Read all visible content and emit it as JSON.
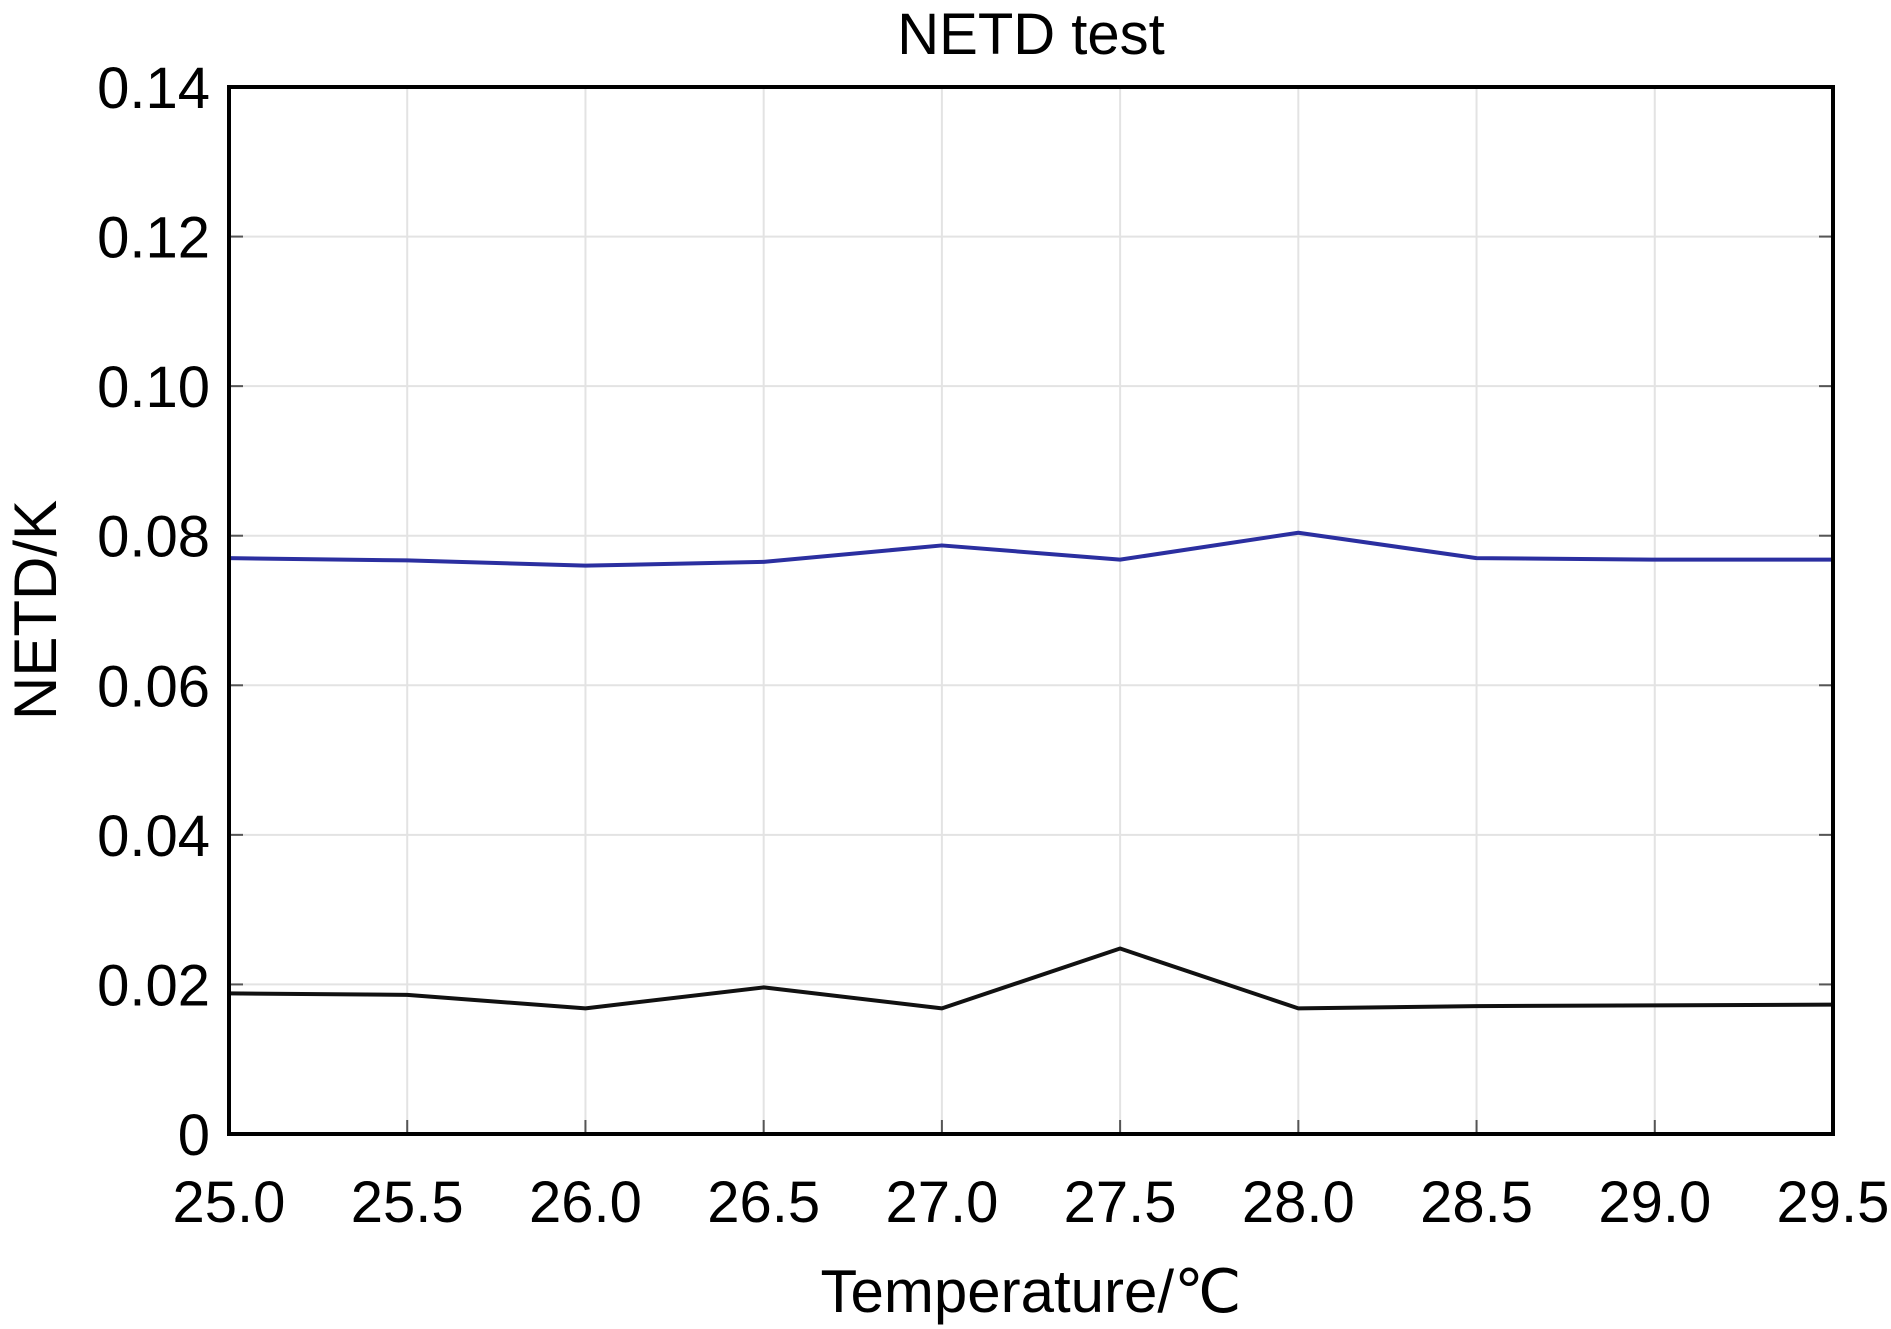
{
  "chart_data": {
    "type": "line",
    "title": "NETD test",
    "xlabel": "Temperature/℃",
    "ylabel": "NETD/K",
    "xlim": [
      25.0,
      29.5
    ],
    "ylim": [
      0,
      0.14
    ],
    "x_ticks": [
      25.0,
      25.5,
      26.0,
      26.5,
      27.0,
      27.5,
      28.0,
      28.5,
      29.0,
      29.5
    ],
    "x_tick_labels": [
      "25.0",
      "25.5",
      "26.0",
      "26.5",
      "27.0",
      "27.5",
      "28.0",
      "28.5",
      "29.0",
      "29.5"
    ],
    "y_ticks": [
      0,
      0.02,
      0.04,
      0.06,
      0.08,
      0.1,
      0.12,
      0.14
    ],
    "y_tick_labels": [
      "0",
      "0.02",
      "0.04",
      "0.06",
      "0.08",
      "0.10",
      "0.12",
      "0.14"
    ],
    "grid": true,
    "legend": false,
    "x": [
      25.0,
      25.5,
      26.0,
      26.5,
      27.0,
      27.5,
      28.0,
      28.5,
      29.0,
      29.5
    ],
    "series": [
      {
        "color": "#2b2fa0",
        "values": [
          0.077,
          0.0767,
          0.076,
          0.0765,
          0.0787,
          0.0768,
          0.0804,
          0.077,
          0.0768,
          0.0768
        ]
      },
      {
        "color": "#111111",
        "values": [
          0.0188,
          0.0186,
          0.0168,
          0.0196,
          0.0168,
          0.0248,
          0.0168,
          0.0171,
          0.0172,
          0.0173
        ]
      }
    ]
  }
}
